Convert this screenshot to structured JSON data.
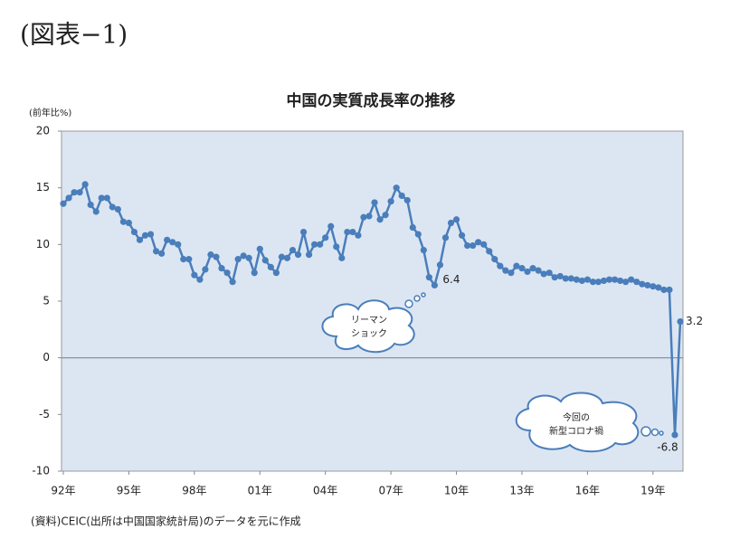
{
  "header": "(図表−1)",
  "source": "(資料)CEIC(出所は中国国家統計局)のデータを元に作成",
  "chart_data": {
    "type": "line",
    "title": "中国の実質成長率の推移",
    "y_axis_label": "(前年比%)",
    "annotations": [
      "リーマン",
      "ショック",
      "今回の",
      "新型コロナ禍"
    ],
    "categories": [
      "92年",
      null,
      null,
      null,
      null,
      null,
      null,
      null,
      null,
      null,
      null,
      null,
      "95年",
      null,
      null,
      null,
      null,
      null,
      null,
      null,
      null,
      null,
      null,
      null,
      "98年",
      null,
      null,
      null,
      null,
      null,
      null,
      null,
      null,
      null,
      null,
      null,
      "01年",
      null,
      null,
      null,
      null,
      null,
      null,
      null,
      null,
      null,
      null,
      null,
      "04年",
      null,
      null,
      null,
      null,
      null,
      null,
      null,
      null,
      null,
      null,
      null,
      "07年",
      null,
      null,
      null,
      null,
      null,
      null,
      null,
      null,
      null,
      null,
      null,
      "10年",
      null,
      null,
      null,
      null,
      null,
      null,
      null,
      null,
      null,
      null,
      null,
      "13年",
      null,
      null,
      null,
      null,
      null,
      null,
      null,
      null,
      null,
      null,
      null,
      "16年",
      null,
      null,
      null,
      null,
      null,
      null,
      null,
      null,
      null,
      null,
      null,
      "19年",
      null,
      null,
      null,
      null,
      null
    ],
    "series": [
      {
        "name": "実質成長率",
        "color": "#4a7ebb",
        "values": [
          13.6,
          14.1,
          14.6,
          14.6,
          15.3,
          13.5,
          12.9,
          14.1,
          14.1,
          13.3,
          13.1,
          12.0,
          11.9,
          11.1,
          10.4,
          10.8,
          10.9,
          9.4,
          9.2,
          10.4,
          10.2,
          10.0,
          8.7,
          8.7,
          7.3,
          6.9,
          7.8,
          9.1,
          8.9,
          7.9,
          7.5,
          6.7,
          8.7,
          9.0,
          8.8,
          7.5,
          9.6,
          8.6,
          8.0,
          7.5,
          8.9,
          8.8,
          9.5,
          9.1,
          11.1,
          9.1,
          10.0,
          10.0,
          10.6,
          11.6,
          9.8,
          8.8,
          11.1,
          11.1,
          10.8,
          12.4,
          12.5,
          13.7,
          12.2,
          12.6,
          13.8,
          15.0,
          14.3,
          13.9,
          11.5,
          10.9,
          9.5,
          7.1,
          6.4,
          8.2,
          10.6,
          11.9,
          12.2,
          10.8,
          9.9,
          9.9,
          10.2,
          10.0,
          9.4,
          8.7,
          8.1,
          7.7,
          7.5,
          8.1,
          7.9,
          7.6,
          7.9,
          7.7,
          7.4,
          7.5,
          7.1,
          7.2,
          7.0,
          7.0,
          6.9,
          6.8,
          6.9,
          6.7,
          6.7,
          6.8,
          6.9,
          6.9,
          6.8,
          6.7,
          6.9,
          6.7,
          6.5,
          6.4,
          6.3,
          6.2,
          6.0,
          6.0,
          -6.8,
          3.2
        ]
      }
    ],
    "ylim": [
      -10,
      20
    ],
    "yticks": [
      -10,
      -5,
      0,
      5,
      10,
      15,
      20
    ]
  }
}
